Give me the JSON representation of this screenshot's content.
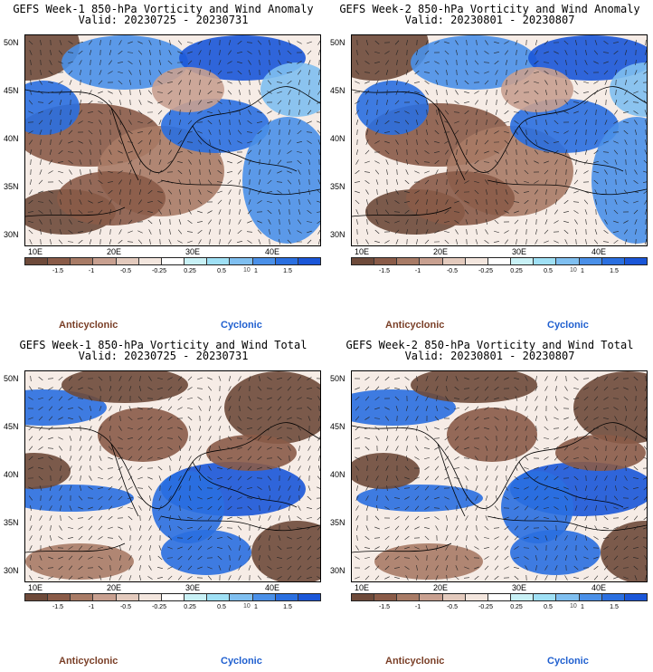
{
  "panels": [
    {
      "title": "GEFS Week-1 850-hPa Vorticity and Wind Anomaly",
      "valid": "Valid: 20230725 - 20230731",
      "kind": "anomaly"
    },
    {
      "title": "GEFS Week-2 850-hPa Vorticity and Wind Anomaly",
      "valid": "Valid: 20230801 - 20230807",
      "kind": "anomaly"
    },
    {
      "title": "GEFS Week-1 850-hPa Vorticity and Wind Total",
      "valid": "Valid: 20230725 - 20230731",
      "kind": "total"
    },
    {
      "title": "GEFS Week-2 850-hPa Vorticity and Wind Total",
      "valid": "Valid: 20230801 - 20230807",
      "kind": "total"
    }
  ],
  "map": {
    "lat_labels": [
      "50N",
      "45N",
      "40N",
      "35N",
      "30N"
    ],
    "lon_labels": [
      "10E",
      "20E",
      "30E",
      "40E"
    ]
  },
  "colorbar": {
    "tick_labels": [
      "-1.5",
      "-1",
      "-0.5",
      "-0.25",
      "0.25",
      "0.5",
      "1",
      "1.5"
    ],
    "unit": "10",
    "colors": [
      "#6e4a3a",
      "#8a5b48",
      "#a87b66",
      "#c8a090",
      "#e3cabd",
      "#f3e6de",
      "#ffffff",
      "#c8f1f6",
      "#9fe0f5",
      "#7fbff0",
      "#4a90e8",
      "#2a6fe0",
      "#1a56d8"
    ]
  },
  "labels": {
    "anticyclonic": "Anticyclonic",
    "cyclonic": "Cyclonic"
  },
  "colors": {
    "anticyclonic": "#7a3f27",
    "cyclonic": "#1f5fcf"
  }
}
